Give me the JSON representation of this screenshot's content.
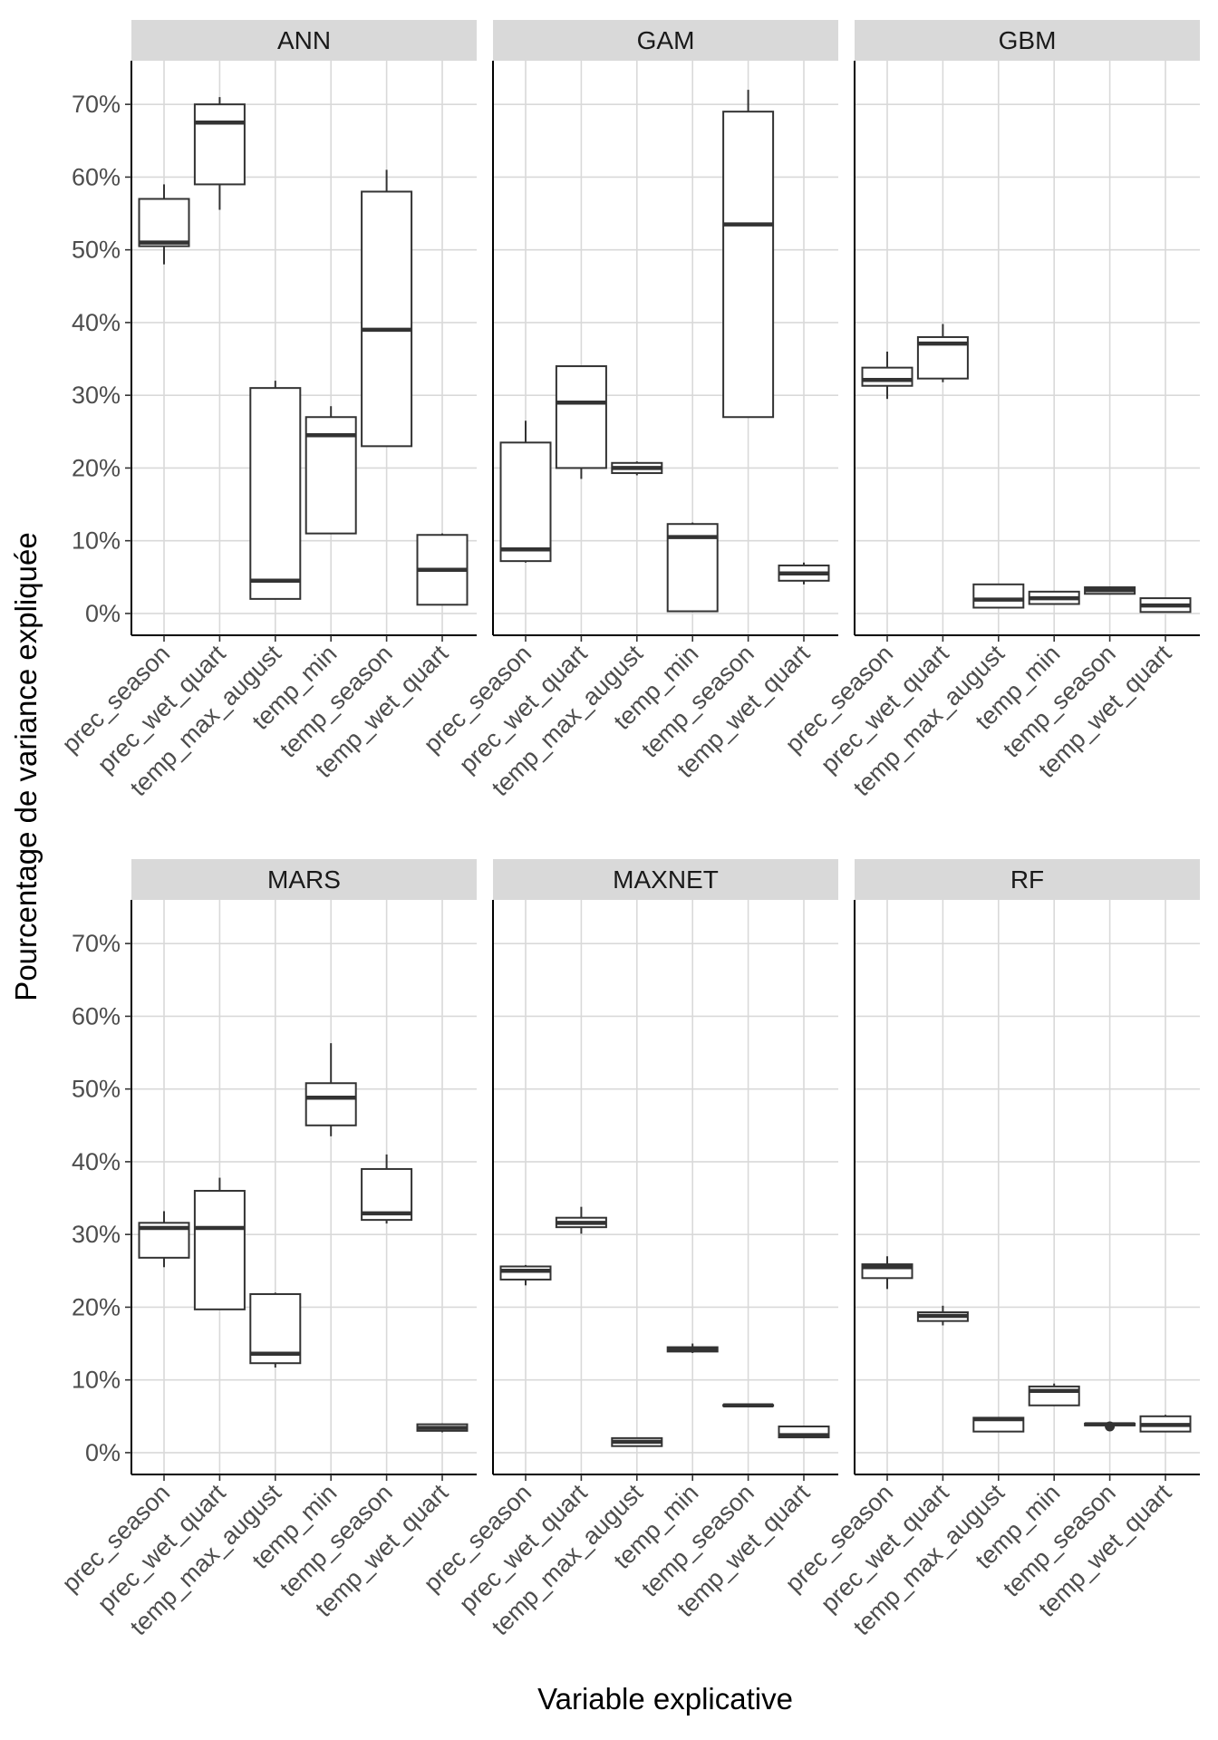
{
  "chart_data": {
    "type": "boxplot",
    "title": "",
    "xlabel": "Variable explicative",
    "ylabel": "Pourcentage de variance expliquée",
    "y_ticks": [
      0,
      10,
      20,
      30,
      40,
      50,
      60,
      70
    ],
    "y_tick_labels": [
      "0%",
      "10%",
      "20%",
      "30%",
      "40%",
      "50%",
      "60%",
      "70%"
    ],
    "ylim": [
      -3,
      76
    ],
    "categories": [
      "prec_season",
      "prec_wet_quart",
      "temp_max_august",
      "temp_min",
      "temp_season",
      "temp_wet_quart"
    ],
    "panels": [
      {
        "name": "ANN",
        "boxes": [
          {
            "min": 48,
            "q1": 50.5,
            "median": 51,
            "q3": 57,
            "max": 59
          },
          {
            "min": 55.5,
            "q1": 59,
            "median": 67.5,
            "q3": 70,
            "max": 71
          },
          {
            "min": 2,
            "q1": 2,
            "median": 4.5,
            "q3": 31,
            "max": 32
          },
          {
            "min": 11,
            "q1": 11,
            "median": 24.5,
            "q3": 27,
            "max": 28.5
          },
          {
            "min": 23,
            "q1": 23,
            "median": 39,
            "q3": 58,
            "max": 61
          },
          {
            "min": 1.2,
            "q1": 1.2,
            "median": 6,
            "q3": 10.8,
            "max": 11
          }
        ],
        "outliers": []
      },
      {
        "name": "GAM",
        "boxes": [
          {
            "min": 7,
            "q1": 7.2,
            "median": 8.8,
            "q3": 23.5,
            "max": 26.5
          },
          {
            "min": 18.5,
            "q1": 20,
            "median": 29,
            "q3": 34,
            "max": 34
          },
          {
            "min": 19,
            "q1": 19.3,
            "median": 20,
            "q3": 20.7,
            "max": 20.9
          },
          {
            "min": 0.3,
            "q1": 0.3,
            "median": 10.5,
            "q3": 12.3,
            "max": 12.5
          },
          {
            "min": 27,
            "q1": 27,
            "median": 53.5,
            "q3": 69,
            "max": 72
          },
          {
            "min": 4,
            "q1": 4.5,
            "median": 5.5,
            "q3": 6.6,
            "max": 7
          }
        ],
        "outliers": []
      },
      {
        "name": "GBM",
        "boxes": [
          {
            "min": 29.5,
            "q1": 31.3,
            "median": 32.1,
            "q3": 33.8,
            "max": 36
          },
          {
            "min": 31.8,
            "q1": 32.3,
            "median": 37.1,
            "q3": 38,
            "max": 39.8
          },
          {
            "min": 0.8,
            "q1": 0.8,
            "median": 1.9,
            "q3": 4,
            "max": 4
          },
          {
            "min": 1.3,
            "q1": 1.3,
            "median": 2.1,
            "q3": 3,
            "max": 3
          },
          {
            "min": 2.6,
            "q1": 2.7,
            "median": 3.2,
            "q3": 3.6,
            "max": 3.7
          },
          {
            "min": 0.2,
            "q1": 0.2,
            "median": 1.1,
            "q3": 2.1,
            "max": 2.1
          }
        ],
        "outliers": []
      },
      {
        "name": "MARS",
        "boxes": [
          {
            "min": 25.5,
            "q1": 26.8,
            "median": 30.9,
            "q3": 31.6,
            "max": 33.2
          },
          {
            "min": 19.7,
            "q1": 19.7,
            "median": 30.9,
            "q3": 36,
            "max": 37.8
          },
          {
            "min": 11.7,
            "q1": 12.3,
            "median": 13.6,
            "q3": 21.8,
            "max": 22
          },
          {
            "min": 43.5,
            "q1": 45,
            "median": 48.8,
            "q3": 50.8,
            "max": 56.3
          },
          {
            "min": 31.5,
            "q1": 32,
            "median": 32.9,
            "q3": 39,
            "max": 41
          },
          {
            "min": 2.8,
            "q1": 3,
            "median": 3.4,
            "q3": 3.9,
            "max": 4
          }
        ],
        "outliers": []
      },
      {
        "name": "MAXNET",
        "boxes": [
          {
            "min": 23,
            "q1": 23.8,
            "median": 25,
            "q3": 25.6,
            "max": 25.8
          },
          {
            "min": 30.1,
            "q1": 31,
            "median": 31.6,
            "q3": 32.3,
            "max": 33.8
          },
          {
            "min": 0.9,
            "q1": 0.9,
            "median": 1.5,
            "q3": 2,
            "max": 2
          },
          {
            "min": 13.7,
            "q1": 13.9,
            "median": 14.2,
            "q3": 14.5,
            "max": 15
          },
          {
            "min": 6.4,
            "q1": 6.45,
            "median": 6.5,
            "q3": 6.55,
            "max": 6.6
          },
          {
            "min": 2.1,
            "q1": 2.1,
            "median": 2.4,
            "q3": 3.6,
            "max": 3.6
          }
        ],
        "outliers": []
      },
      {
        "name": "RF",
        "boxes": [
          {
            "min": 22.5,
            "q1": 24,
            "median": 25.5,
            "q3": 25.9,
            "max": 27
          },
          {
            "min": 17.5,
            "q1": 18.1,
            "median": 18.8,
            "q3": 19.3,
            "max": 20.2
          },
          {
            "min": 2.9,
            "q1": 2.9,
            "median": 4.6,
            "q3": 4.8,
            "max": 4.8
          },
          {
            "min": 6.5,
            "q1": 6.5,
            "median": 8.5,
            "q3": 9.1,
            "max": 9.5
          },
          {
            "min": 3.7,
            "q1": 3.75,
            "median": 3.9,
            "q3": 4,
            "max": 4
          },
          {
            "min": 2.9,
            "q1": 2.9,
            "median": 3.8,
            "q3": 5,
            "max": 5.2
          }
        ],
        "outliers": [
          {
            "category_index": 4,
            "value": 3.6
          }
        ]
      }
    ]
  }
}
